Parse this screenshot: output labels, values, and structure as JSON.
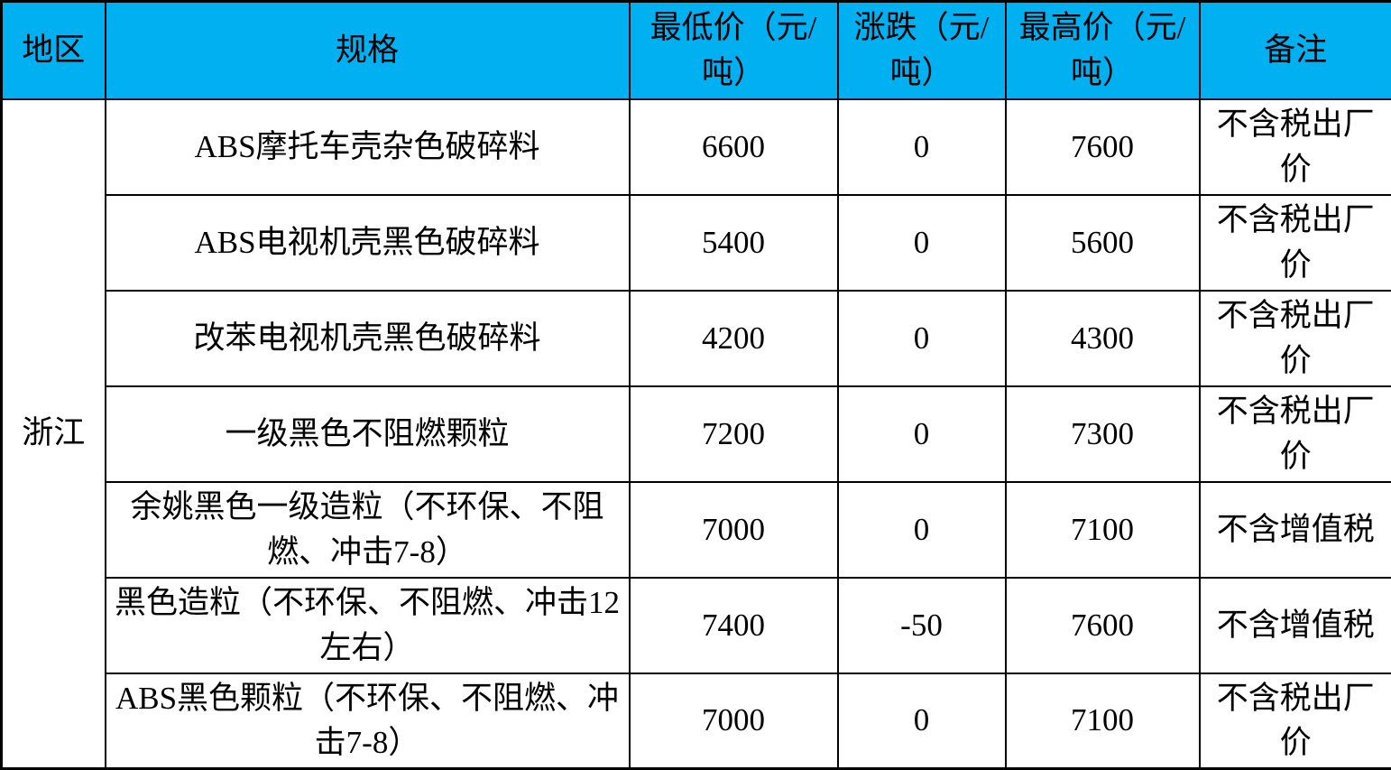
{
  "page": {
    "background": "#ffffff"
  },
  "table": {
    "colors": {
      "header_bg": "#00b0f0",
      "body_bg": "#ffffff",
      "border": "#000000",
      "text": "#000000"
    },
    "header": {
      "region": "地区",
      "spec": "规格",
      "low": "最低价（元/吨）",
      "change": "涨跌（元/吨）",
      "high": "最高价（元/吨）",
      "note": "备注"
    },
    "region": "浙江",
    "rows": [
      {
        "spec": "ABS摩托车壳杂色破碎料",
        "low": "6600",
        "change": "0",
        "high": "7600",
        "note": "不含税出厂价"
      },
      {
        "spec": "ABS电视机壳黑色破碎料",
        "low": "5400",
        "change": "0",
        "high": "5600",
        "note": "不含税出厂价"
      },
      {
        "spec": "改苯电视机壳黑色破碎料",
        "low": "4200",
        "change": "0",
        "high": "4300",
        "note": "不含税出厂价"
      },
      {
        "spec": "一级黑色不阻燃颗粒",
        "low": "7200",
        "change": "0",
        "high": "7300",
        "note": "不含税出厂价"
      },
      {
        "spec": "余姚黑色一级造粒（不环保、不阻燃、冲击7-8）",
        "low": "7000",
        "change": "0",
        "high": "7100",
        "note": "不含增值税"
      },
      {
        "spec": "黑色造粒（不环保、不阻燃、冲击12左右）",
        "low": "7400",
        "change": "-50",
        "high": "7600",
        "note": "不含增值税"
      },
      {
        "spec": "ABS黑色颗粒（不环保、不阻燃、冲击7-8）",
        "low": "7000",
        "change": "0",
        "high": "7100",
        "note": "不含税出厂价"
      }
    ]
  },
  "chart_data": {
    "type": "table",
    "columns": [
      "地区",
      "规格",
      "最低价（元/吨）",
      "涨跌（元/吨）",
      "最高价（元/吨）",
      "备注"
    ],
    "rows": [
      [
        "浙江",
        "ABS摩托车壳杂色破碎料",
        6600,
        0,
        7600,
        "不含税出厂价"
      ],
      [
        "浙江",
        "ABS电视机壳黑色破碎料",
        5400,
        0,
        5600,
        "不含税出厂价"
      ],
      [
        "浙江",
        "改苯电视机壳黑色破碎料",
        4200,
        0,
        4300,
        "不含税出厂价"
      ],
      [
        "浙江",
        "一级黑色不阻燃颗粒",
        7200,
        0,
        7300,
        "不含税出厂价"
      ],
      [
        "浙江",
        "余姚黑色一级造粒（不环保、不阻燃、冲击7-8）",
        7000,
        0,
        7100,
        "不含增值税"
      ],
      [
        "浙江",
        "黑色造粒（不环保、不阻燃、冲击12左右）",
        7400,
        -50,
        7600,
        "不含增值税"
      ],
      [
        "浙江",
        "ABS黑色颗粒（不环保、不阻燃、冲击7-8）",
        7000,
        0,
        7100,
        "不含税出厂价"
      ]
    ]
  }
}
